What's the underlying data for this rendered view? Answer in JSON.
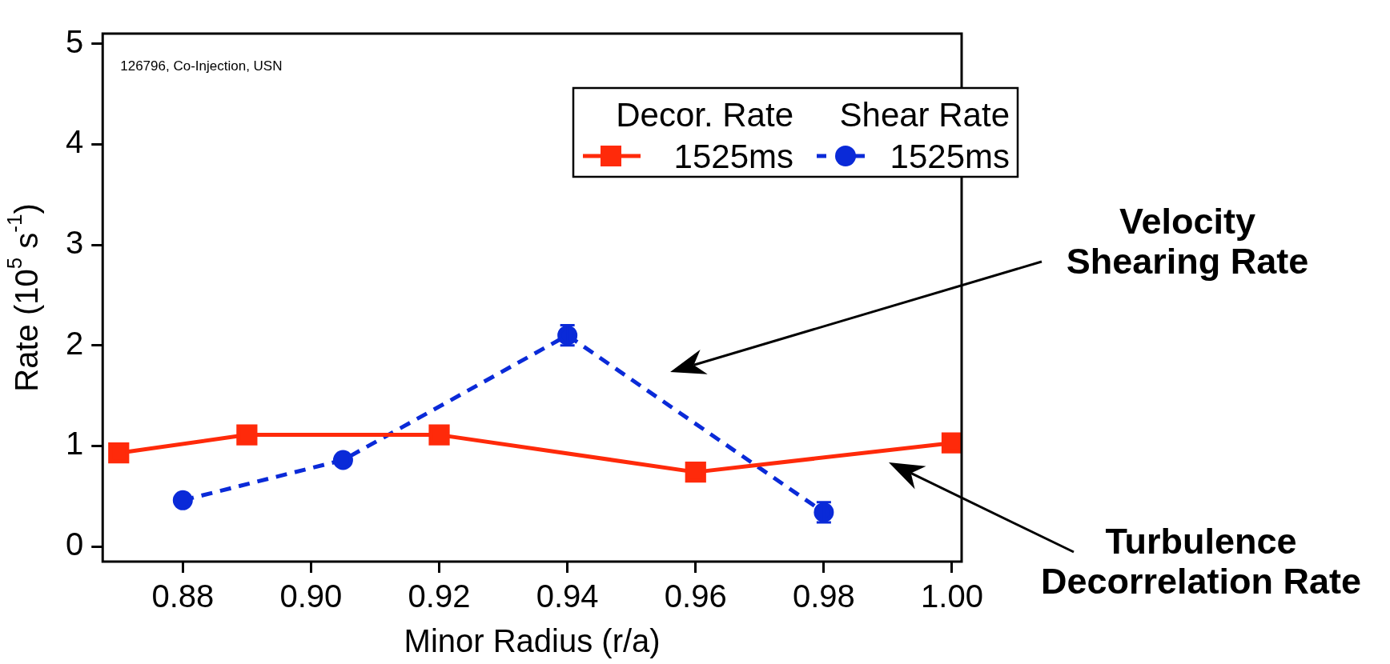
{
  "chart_data": {
    "type": "line",
    "xlabel": "Minor Radius (r/a)",
    "ylabel": "Rate (10$^{5}$ s$^{-1}$)",
    "xlim": [
      0.8675,
      1.0015
    ],
    "xticks": [
      0.88,
      {
        "value": 0.9,
        "label": "0.90"
      },
      0.92,
      0.94,
      0.96,
      0.98,
      {
        "value": 1,
        "label": "1.00"
      }
    ],
    "ylim": [
      -0.15,
      5.1
    ],
    "yticks": [
      0,
      1,
      2,
      3,
      4,
      5
    ],
    "grid": false,
    "legend": "top right",
    "series": [
      {
        "name": "1525ms",
        "color": "#ff2a0a",
        "marker": "square",
        "line_style": "solid",
        "x": [
          0.87,
          0.89,
          0.92,
          0.96,
          1.0
        ],
        "values": [
          0.93,
          1.11,
          1.11,
          0.74,
          1.03
        ]
      },
      {
        "name": "1525ms",
        "color": "#0a2ad8",
        "marker": "circle",
        "line_style": "dashed",
        "x": [
          0.88,
          0.905,
          0.94,
          0.98
        ],
        "values": [
          0.46,
          0.86,
          2.1,
          0.34
        ],
        "errors": [
          null,
          null,
          0.1,
          0.1
        ]
      }
    ],
    "annotations": [
      "126796, Co-Injection, USN",
      "Decor. Rate",
      "Shear Rate",
      "Velocity\nShearing Rate",
      "Turbulence\nDecorrelation Rate"
    ]
  }
}
